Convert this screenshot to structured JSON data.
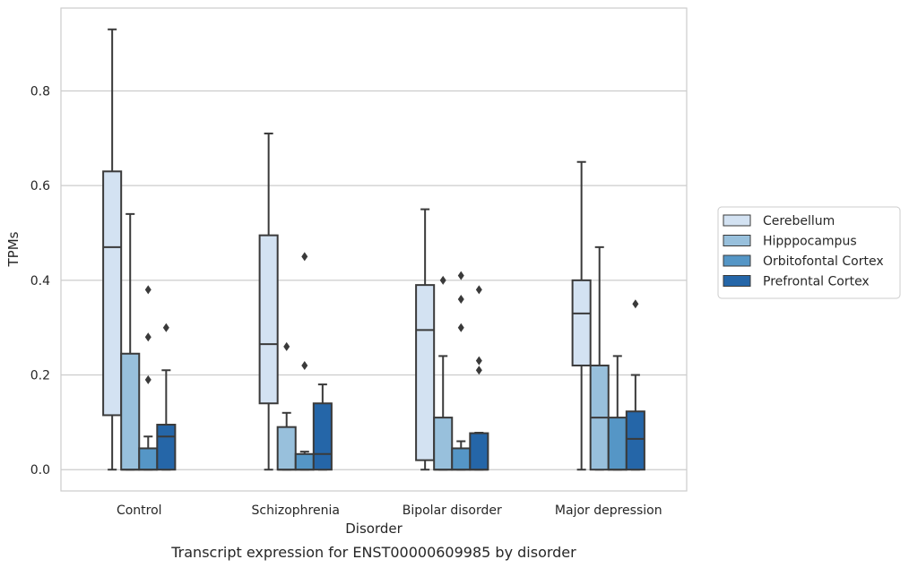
{
  "chart_data": {
    "type": "box",
    "caption": "Transcript expression for ENST00000609985 by disorder",
    "xlabel": "Disorder",
    "ylabel": "TPMs",
    "ylim": [
      -0.045,
      0.975
    ],
    "yticks": [
      0.0,
      0.2,
      0.4,
      0.6,
      0.8
    ],
    "ytick_labels": [
      "0.0",
      "0.2",
      "0.4",
      "0.6",
      "0.8"
    ],
    "grid": "horizontal",
    "legend_position": "right",
    "categories": [
      "Control",
      "Schizophrenia",
      "Bipolar disorder",
      "Major depression"
    ],
    "series": [
      {
        "name": "Cerebellum",
        "color": "#d3e2f2",
        "boxes": [
          {
            "whislo": 0.0,
            "q1": 0.115,
            "med": 0.47,
            "q3": 0.63,
            "whishi": 0.93,
            "fliers": []
          },
          {
            "whislo": 0.0,
            "q1": 0.14,
            "med": 0.265,
            "q3": 0.495,
            "whishi": 0.71,
            "fliers": []
          },
          {
            "whislo": 0.0,
            "q1": 0.02,
            "med": 0.295,
            "q3": 0.39,
            "whishi": 0.55,
            "fliers": []
          },
          {
            "whislo": 0.0,
            "q1": 0.22,
            "med": 0.33,
            "q3": 0.4,
            "whishi": 0.65,
            "fliers": []
          }
        ]
      },
      {
        "name": "Hipppocampus",
        "color": "#98c0dc",
        "boxes": [
          {
            "whislo": 0.0,
            "q1": 0.0,
            "med": 0.0,
            "q3": 0.245,
            "whishi": 0.54,
            "fliers": []
          },
          {
            "whislo": 0.0,
            "q1": 0.0,
            "med": 0.0,
            "q3": 0.09,
            "whishi": 0.12,
            "fliers": [
              0.26
            ]
          },
          {
            "whislo": 0.0,
            "q1": 0.0,
            "med": 0.0,
            "q3": 0.11,
            "whishi": 0.24,
            "fliers": [
              0.4
            ]
          },
          {
            "whislo": 0.0,
            "q1": 0.0,
            "med": 0.11,
            "q3": 0.22,
            "whishi": 0.47,
            "fliers": []
          }
        ]
      },
      {
        "name": "Orbitofontal Cortex",
        "color": "#5596c6",
        "boxes": [
          {
            "whislo": 0.0,
            "q1": 0.0,
            "med": 0.0,
            "q3": 0.045,
            "whishi": 0.07,
            "fliers": [
              0.19,
              0.28,
              0.38
            ]
          },
          {
            "whislo": 0.0,
            "q1": 0.0,
            "med": 0.0,
            "q3": 0.033,
            "whishi": 0.038,
            "fliers": [
              0.22,
              0.45
            ]
          },
          {
            "whislo": 0.0,
            "q1": 0.0,
            "med": 0.0,
            "q3": 0.045,
            "whishi": 0.06,
            "fliers": [
              0.3,
              0.36,
              0.41
            ]
          },
          {
            "whislo": 0.0,
            "q1": 0.0,
            "med": 0.0,
            "q3": 0.11,
            "whishi": 0.24,
            "fliers": []
          }
        ]
      },
      {
        "name": "Prefrontal Cortex",
        "color": "#2566a8",
        "boxes": [
          {
            "whislo": 0.0,
            "q1": 0.0,
            "med": 0.07,
            "q3": 0.095,
            "whishi": 0.21,
            "fliers": [
              0.3
            ]
          },
          {
            "whislo": 0.0,
            "q1": 0.0,
            "med": 0.033,
            "q3": 0.14,
            "whishi": 0.18,
            "fliers": []
          },
          {
            "whislo": 0.0,
            "q1": 0.0,
            "med": 0.0,
            "q3": 0.077,
            "whishi": 0.078,
            "fliers": [
              0.21,
              0.23,
              0.38
            ]
          },
          {
            "whislo": 0.0,
            "q1": 0.0,
            "med": 0.065,
            "q3": 0.123,
            "whishi": 0.2,
            "fliers": [
              0.35
            ]
          }
        ]
      }
    ]
  }
}
